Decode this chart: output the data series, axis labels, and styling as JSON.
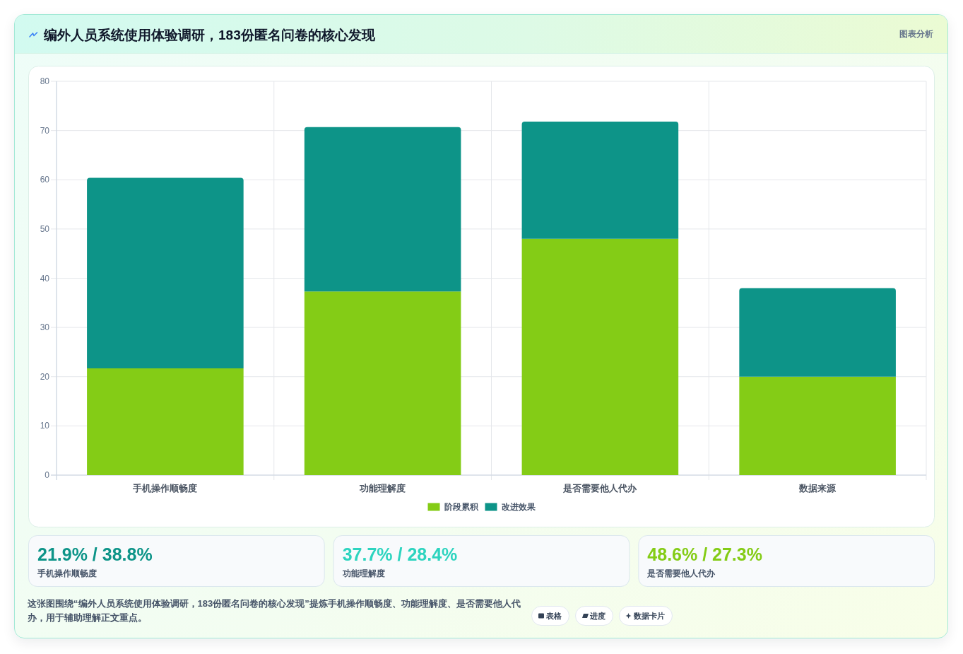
{
  "chart_data": [
    {
      "type": "bar",
      "title": "编外人员系统使用体验调研，183份匿名问卷的核心发现",
      "categories": [
        "手机操作顺畅度",
        "功能理解度",
        "是否需要他人代办",
        "数据来源"
      ],
      "stacked": true,
      "series": [
        {
          "name": "阶段累积",
          "color": "#84cc16",
          "values": [
            21.7,
            37.3,
            48.0,
            20.0
          ]
        },
        {
          "name": "改进效果",
          "color": "#0d9488",
          "values": [
            38.7,
            33.4,
            23.8,
            18.0
          ]
        }
      ],
      "ylim": [
        0,
        80
      ],
      "yticks": [
        0,
        10,
        20,
        30,
        40,
        50,
        60,
        70,
        80
      ],
      "grid": true,
      "legend": "bottom",
      "annotations": [
        "图表分析",
        "这张图围绕“编外人员系统使用体验调研，183份匿名问卷的核心发现”提炼手机操作顺畅度、功能理解度、是否需要他人代办，用于辅助理解正文重点。",
        "表格",
        "进度",
        "数据卡片"
      ]
    },
    {
      "type": "other",
      "title": "21.9% / 38.8%",
      "subtitle": "手机操作顺畅度",
      "color": "#0d9488"
    },
    {
      "type": "other",
      "title": "37.7% / 28.4%",
      "subtitle": "功能理解度",
      "color": "#2dd4bf"
    },
    {
      "type": "other",
      "title": "48.6% / 27.3%",
      "subtitle": "是否需要他人代办",
      "color": "#84cc16"
    }
  ]
}
